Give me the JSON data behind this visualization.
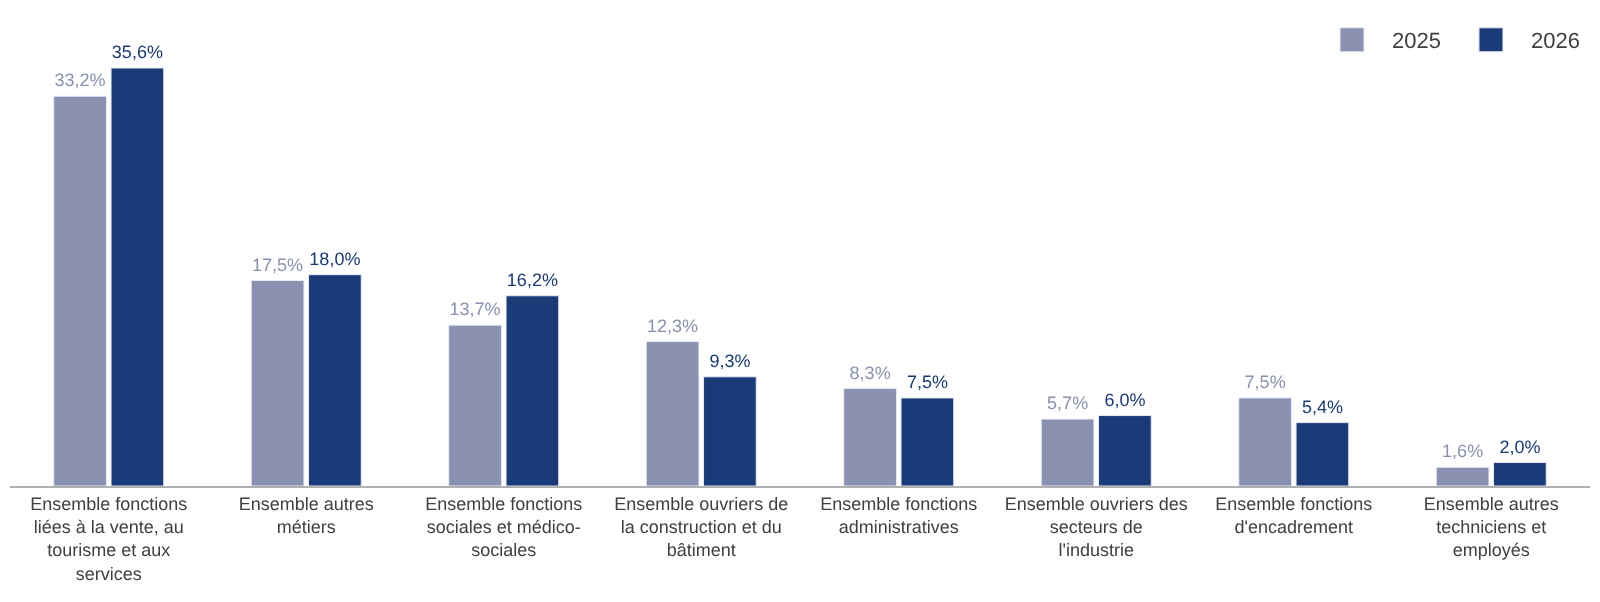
{
  "chart_data": {
    "type": "bar",
    "categories": [
      "Ensemble fonctions liées à la vente, au tourisme et aux services",
      "Ensemble autres métiers",
      "Ensemble fonctions sociales et médico-sociales",
      "Ensemble ouvriers de la construction et du bâtiment",
      "Ensemble fonctions administratives",
      "Ensemble ouvriers des secteurs de l'industrie",
      "Ensemble fonctions d'encadrement",
      "Ensemble autres techniciens et employés"
    ],
    "series": [
      {
        "name": "2025",
        "color": "#8a91b0",
        "values": [
          33.2,
          17.5,
          13.7,
          12.3,
          8.3,
          5.7,
          7.5,
          1.6
        ],
        "value_labels": [
          "33,2%",
          "17,5%",
          "13,7%",
          "12,3%",
          "8,3%",
          "5,7%",
          "7,5%",
          "1,6%"
        ]
      },
      {
        "name": "2026",
        "color": "#1b3a78",
        "values": [
          35.6,
          18.0,
          16.2,
          9.3,
          7.5,
          6.0,
          5.4,
          2.0
        ],
        "value_labels": [
          "35,6%",
          "18,0%",
          "16,2%",
          "9,3%",
          "7,5%",
          "6,0%",
          "5,4%",
          "2,0%"
        ]
      }
    ],
    "legend": "top right"
  }
}
